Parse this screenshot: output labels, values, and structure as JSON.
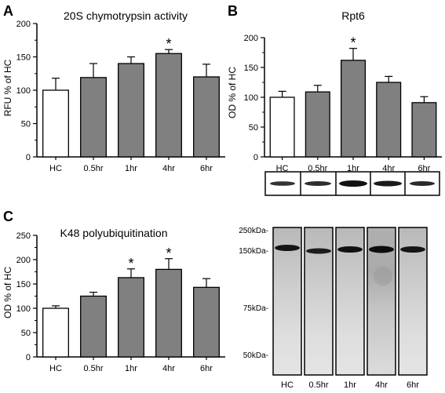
{
  "chart_data": [
    {
      "panel": "A",
      "type": "bar",
      "title": "20S chymotrypsin activity",
      "ylabel": "RFU % of HC",
      "categories": [
        "HC",
        "0.5hr",
        "1hr",
        "4hr",
        "6hr"
      ],
      "values": [
        100,
        119,
        140,
        155,
        120
      ],
      "errors": [
        18,
        21,
        10,
        6,
        19
      ],
      "significant": [
        "",
        "",
        "",
        "*",
        ""
      ],
      "bar_colors": [
        "#ffffff",
        "#808080",
        "#808080",
        "#808080",
        "#808080"
      ],
      "ylim": [
        0,
        200
      ],
      "yticks": [
        "0",
        "50",
        "100",
        "150",
        "200"
      ]
    },
    {
      "panel": "B",
      "type": "bar",
      "title": "Rpt6",
      "ylabel": "OD % of HC",
      "categories": [
        "HC",
        "0.5hr",
        "1hr",
        "4hr",
        "6hr"
      ],
      "values": [
        100,
        109,
        162,
        125,
        91
      ],
      "errors": [
        10,
        11,
        20,
        10,
        10
      ],
      "significant": [
        "",
        "",
        "*",
        "",
        ""
      ],
      "bar_colors": [
        "#ffffff",
        "#808080",
        "#808080",
        "#808080",
        "#808080"
      ],
      "ylim": [
        0,
        200
      ],
      "yticks": [
        "0",
        "50",
        "100",
        "150",
        "200"
      ]
    },
    {
      "panel": "C",
      "type": "bar",
      "title": "K48 polyubiquitination",
      "ylabel": "OD % of HC",
      "categories": [
        "HC",
        "0.5hr",
        "1hr",
        "4hr",
        "6hr"
      ],
      "values": [
        100,
        125,
        163,
        180,
        143
      ],
      "errors": [
        5,
        8,
        18,
        22,
        18
      ],
      "significant": [
        "",
        "",
        "*",
        "*",
        ""
      ],
      "bar_colors": [
        "#ffffff",
        "#808080",
        "#808080",
        "#808080",
        "#808080"
      ],
      "ylim": [
        0,
        250
      ],
      "yticks": [
        "0",
        "50",
        "100",
        "150",
        "200",
        "250"
      ]
    }
  ],
  "western_blot": {
    "markers": [
      "250kDa-",
      "150kDa-",
      "75kDa-",
      "50kDa-"
    ],
    "lanes": [
      "HC",
      "0.5hr",
      "1hr",
      "4hr",
      "6hr"
    ]
  }
}
